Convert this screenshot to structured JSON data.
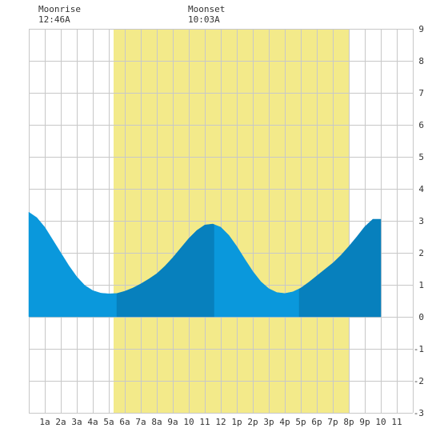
{
  "header": {
    "moonrise": {
      "label": "Moonrise",
      "time": "12:46A"
    },
    "moonset": {
      "label": "Moonset",
      "time": "10:03A"
    }
  },
  "colors": {
    "daylight": "#f3ea8a",
    "water_light": "#0a98dc",
    "water_dark": "#0780bd",
    "grid": "#c8c8c8",
    "text": "#333333"
  },
  "chart_data": {
    "type": "area",
    "title": "",
    "xlabel": "",
    "ylabel": "",
    "xlim": [
      0,
      24
    ],
    "ylim": [
      -3,
      9
    ],
    "y_ticks": [
      -3,
      -2,
      -1,
      0,
      1,
      2,
      3,
      4,
      5,
      6,
      7,
      8,
      9
    ],
    "x_ticks": [
      {
        "x": 1,
        "label": "1a"
      },
      {
        "x": 2,
        "label": "2a"
      },
      {
        "x": 3,
        "label": "3a"
      },
      {
        "x": 4,
        "label": "4a"
      },
      {
        "x": 5,
        "label": "5a"
      },
      {
        "x": 6,
        "label": "6a"
      },
      {
        "x": 7,
        "label": "7a"
      },
      {
        "x": 8,
        "label": "8a"
      },
      {
        "x": 9,
        "label": "9a"
      },
      {
        "x": 10,
        "label": "10"
      },
      {
        "x": 11,
        "label": "11"
      },
      {
        "x": 12,
        "label": "12"
      },
      {
        "x": 13,
        "label": "1p"
      },
      {
        "x": 14,
        "label": "2p"
      },
      {
        "x": 15,
        "label": "3p"
      },
      {
        "x": 16,
        "label": "4p"
      },
      {
        "x": 17,
        "label": "5p"
      },
      {
        "x": 18,
        "label": "6p"
      },
      {
        "x": 19,
        "label": "7p"
      },
      {
        "x": 20,
        "label": "8p"
      },
      {
        "x": 21,
        "label": "9p"
      },
      {
        "x": 22,
        "label": "10"
      },
      {
        "x": 23,
        "label": "11"
      }
    ],
    "daylight": {
      "start": 5.3,
      "end": 20.0
    },
    "series": [
      {
        "points": [
          {
            "x": 0,
            "y": 3.27
          },
          {
            "x": 0.5,
            "y": 3.1
          },
          {
            "x": 1,
            "y": 2.8
          },
          {
            "x": 1.5,
            "y": 2.4
          },
          {
            "x": 2,
            "y": 2.0
          },
          {
            "x": 2.5,
            "y": 1.6
          },
          {
            "x": 3,
            "y": 1.25
          },
          {
            "x": 3.5,
            "y": 0.98
          },
          {
            "x": 4,
            "y": 0.82
          },
          {
            "x": 4.5,
            "y": 0.74
          },
          {
            "x": 5,
            "y": 0.72
          },
          {
            "x": 5.5,
            "y": 0.73
          },
          {
            "x": 6,
            "y": 0.8
          },
          {
            "x": 6.5,
            "y": 0.9
          },
          {
            "x": 7,
            "y": 1.03
          },
          {
            "x": 7.5,
            "y": 1.18
          },
          {
            "x": 8,
            "y": 1.35
          },
          {
            "x": 8.5,
            "y": 1.58
          },
          {
            "x": 9,
            "y": 1.85
          },
          {
            "x": 9.5,
            "y": 2.15
          },
          {
            "x": 10,
            "y": 2.45
          },
          {
            "x": 10.5,
            "y": 2.7
          },
          {
            "x": 11,
            "y": 2.87
          },
          {
            "x": 11.5,
            "y": 2.9
          },
          {
            "x": 12,
            "y": 2.8
          },
          {
            "x": 12.5,
            "y": 2.55
          },
          {
            "x": 13,
            "y": 2.2
          },
          {
            "x": 13.5,
            "y": 1.8
          },
          {
            "x": 14,
            "y": 1.42
          },
          {
            "x": 14.5,
            "y": 1.1
          },
          {
            "x": 15,
            "y": 0.88
          },
          {
            "x": 15.5,
            "y": 0.76
          },
          {
            "x": 16,
            "y": 0.73
          },
          {
            "x": 16.5,
            "y": 0.78
          },
          {
            "x": 17,
            "y": 0.9
          },
          {
            "x": 17.5,
            "y": 1.08
          },
          {
            "x": 18,
            "y": 1.28
          },
          {
            "x": 18.5,
            "y": 1.48
          },
          {
            "x": 19,
            "y": 1.68
          },
          {
            "x": 19.5,
            "y": 1.92
          },
          {
            "x": 20,
            "y": 2.2
          },
          {
            "x": 20.5,
            "y": 2.5
          },
          {
            "x": 21,
            "y": 2.82
          },
          {
            "x": 21.5,
            "y": 3.05
          },
          {
            "x": 22,
            "y": 3.05
          }
        ]
      }
    ],
    "shaded_segments": [
      {
        "from": 0,
        "to": 5.5,
        "shade": "light"
      },
      {
        "from": 5.5,
        "to": 11.6,
        "shade": "dark"
      },
      {
        "from": 11.6,
        "to": 16.9,
        "shade": "light"
      },
      {
        "from": 16.9,
        "to": 22,
        "shade": "dark"
      }
    ]
  }
}
